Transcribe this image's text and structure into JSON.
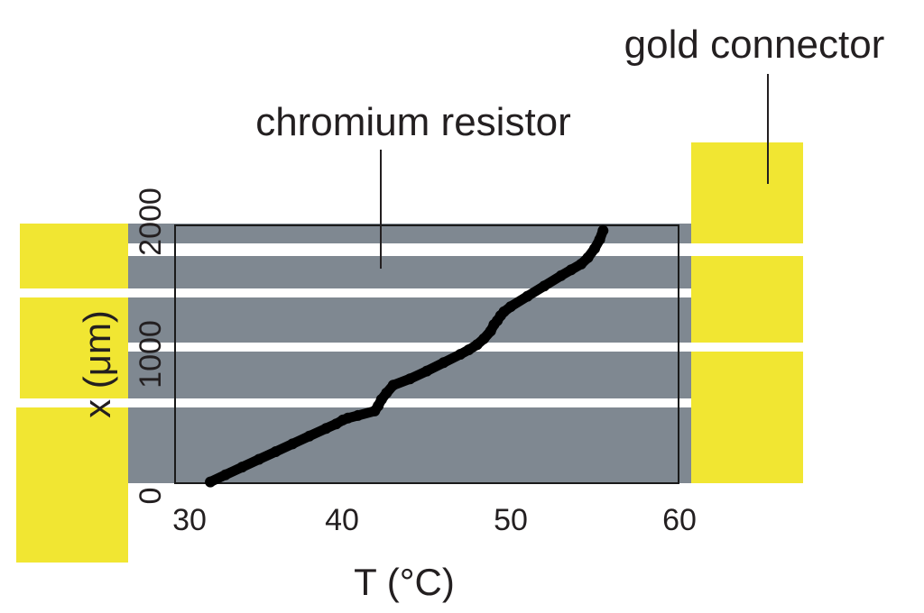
{
  "chart_data": {
    "type": "scatter",
    "title": "",
    "xlabel": "T (°C)",
    "ylabel": "x (μm)",
    "xlim": [
      30,
      60
    ],
    "ylim": [
      0,
      2000
    ],
    "xticks": [
      "30",
      "40",
      "50",
      "60"
    ],
    "yticks": [
      "0",
      "1000",
      "2000"
    ],
    "grid": false,
    "annotations": {
      "resistor": "chromium resistor",
      "connector": "gold connector"
    },
    "colors": {
      "resistor": "#7f8891",
      "connector": "#f1e632",
      "points": "#000000"
    },
    "series": [
      {
        "x": [
          32.1,
          33.0,
          34.0,
          35.0,
          36.0,
          37.0,
          38.0,
          39.0,
          39.6,
          40.0,
          40.3,
          40.9,
          41.9,
          42.1,
          42.3,
          42.6,
          43.0,
          44.0,
          45.0,
          46.0,
          47.0,
          47.5,
          48.0,
          48.4,
          48.8,
          49.0,
          49.2,
          49.4,
          49.6,
          50.0,
          51.0,
          52.0,
          53.0,
          53.6,
          54.2,
          54.6,
          55.0,
          55.3,
          55.5
        ],
        "y": [
          10,
          65,
          125,
          185,
          245,
          305,
          365,
          425,
          460,
          490,
          505,
          525,
          560,
          600,
          650,
          700,
          760,
          810,
          870,
          935,
          1000,
          1035,
          1075,
          1120,
          1180,
          1230,
          1260,
          1300,
          1330,
          1370,
          1450,
          1530,
          1610,
          1655,
          1700,
          1750,
          1820,
          1890,
          1960
        ]
      }
    ]
  }
}
